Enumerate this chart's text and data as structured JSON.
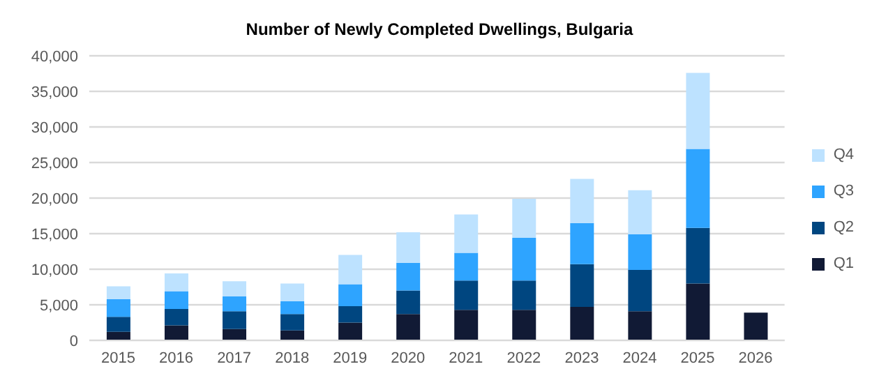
{
  "chart_data": {
    "type": "bar",
    "title": "Number of Newly Completed Dwellings, Bulgaria",
    "categories": [
      "2015",
      "2016",
      "2017",
      "2018",
      "2019",
      "2020",
      "2021",
      "2022",
      "2023",
      "2024",
      "2025",
      "2026"
    ],
    "stacked": true,
    "series": [
      {
        "name": "Q1",
        "color": "#111a35",
        "values": [
          1200,
          2100,
          1600,
          1400,
          2500,
          3700,
          4300,
          4300,
          4700,
          4100,
          8000,
          3900
        ]
      },
      {
        "name": "Q2",
        "color": "#004680",
        "values": [
          2100,
          2300,
          2500,
          2300,
          2300,
          3300,
          4100,
          4100,
          6000,
          5800,
          7800,
          null
        ]
      },
      {
        "name": "Q3",
        "color": "#2ea4ff",
        "values": [
          2500,
          2500,
          2100,
          1800,
          3100,
          3900,
          3900,
          6000,
          5800,
          5000,
          11100,
          null
        ]
      },
      {
        "name": "Q4",
        "color": "#bde2ff",
        "values": [
          1800,
          2500,
          2100,
          2500,
          4100,
          4300,
          5400,
          5500,
          6200,
          6200,
          10700,
          null
        ]
      }
    ],
    "ylim": [
      0,
      40000
    ],
    "yticks": [
      0,
      {
        "value": 5000,
        "label": "5,000"
      },
      {
        "value": 10000,
        "label": "10,000"
      },
      {
        "value": 15000,
        "label": "15,000"
      },
      {
        "value": 20000,
        "label": "20,000"
      },
      {
        "value": 25000,
        "label": "25,000"
      },
      {
        "value": 30000,
        "label": "30,000"
      },
      {
        "value": 35000,
        "label": "35,000"
      },
      {
        "value": 40000,
        "label": "40,000"
      }
    ],
    "grid": "y",
    "legend": "right"
  }
}
